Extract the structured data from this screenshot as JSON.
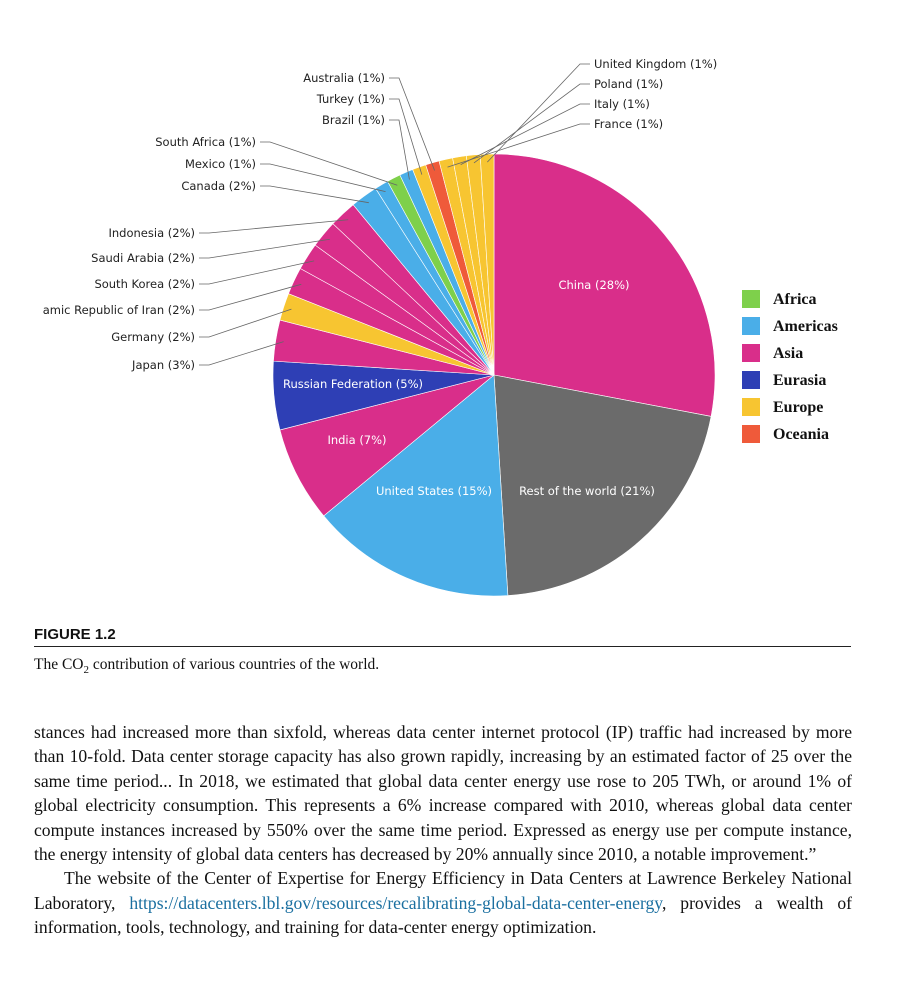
{
  "chart_data": {
    "type": "pie",
    "title": "",
    "slices": [
      {
        "label": "China (28%)",
        "value": 28,
        "region": "Asia",
        "label_inside": true
      },
      {
        "label": "Rest of the world (21%)",
        "value": 21,
        "region": "Rest",
        "label_inside": true
      },
      {
        "label": "United States (15%)",
        "value": 15,
        "region": "Americas",
        "label_inside": true
      },
      {
        "label": "India (7%)",
        "value": 7,
        "region": "Asia",
        "label_inside": true
      },
      {
        "label": "Russian Federation (5%)",
        "value": 5,
        "region": "Eurasia",
        "label_inside": true
      },
      {
        "label": "Japan (3%)",
        "value": 3,
        "region": "Asia",
        "label_inside": false
      },
      {
        "label": "Germany (2%)",
        "value": 2,
        "region": "Europe",
        "label_inside": false
      },
      {
        "label": "amic Republic of Iran (2%)",
        "value": 2,
        "region": "Asia",
        "label_inside": false
      },
      {
        "label": "South Korea (2%)",
        "value": 2,
        "region": "Asia",
        "label_inside": false
      },
      {
        "label": "Saudi Arabia (2%)",
        "value": 2,
        "region": "Asia",
        "label_inside": false
      },
      {
        "label": "Indonesia (2%)",
        "value": 2,
        "region": "Asia",
        "label_inside": false
      },
      {
        "label": "Canada (2%)",
        "value": 2,
        "region": "Americas",
        "label_inside": false
      },
      {
        "label": "Mexico (1%)",
        "value": 1,
        "region": "Americas",
        "label_inside": false
      },
      {
        "label": "South Africa (1%)",
        "value": 1,
        "region": "Africa",
        "label_inside": false
      },
      {
        "label": "Brazil (1%)",
        "value": 1,
        "region": "Americas",
        "label_inside": false
      },
      {
        "label": "Turkey (1%)",
        "value": 1,
        "region": "Europe",
        "label_inside": false
      },
      {
        "label": "Australia (1%)",
        "value": 1,
        "region": "Oceania",
        "label_inside": false
      },
      {
        "label": "France (1%)",
        "value": 1,
        "region": "Europe",
        "label_inside": false
      },
      {
        "label": "Italy (1%)",
        "value": 1,
        "region": "Europe",
        "label_inside": false
      },
      {
        "label": "Poland (1%)",
        "value": 1,
        "region": "Europe",
        "label_inside": false
      },
      {
        "label": "United Kingdom (1%)",
        "value": 1,
        "region": "Europe",
        "label_inside": false
      }
    ],
    "legend": [
      {
        "name": "Africa",
        "color": "#7ed04b"
      },
      {
        "name": "Americas",
        "color": "#4aaee8"
      },
      {
        "name": "Asia",
        "color": "#d92e8a"
      },
      {
        "name": "Eurasia",
        "color": "#2e3fb5"
      },
      {
        "name": "Europe",
        "color": "#f7c531"
      },
      {
        "name": "Oceania",
        "color": "#ef5a3a"
      }
    ],
    "legend_position": "right",
    "rest_color": "#6b6b6b"
  },
  "figure": {
    "heading": "FIGURE 1.2",
    "caption_before": "The CO",
    "caption_sub": "2",
    "caption_after": " contribution of various countries of the world."
  },
  "body": {
    "para1": "stances had increased more than sixfold, whereas data center internet protocol (IP) traffic had increased by more than 10-fold. Data center storage capacity has also grown rapidly, increasing by an estimated factor of 25 over the same time period... In 2018, we estimated that global data center energy use rose to 205 TWh, or around 1% of global electricity consumption. This represents a 6% increase compared with 2010, whereas global data center compute instances increased by 550% over the same time period. Expressed as energy use per compute instance, the energy intensity of global data centers has decreased by 20% annually since 2010, a notable improvement.”",
    "para2_before": "The website of the Center of Expertise for Energy Efficiency in Data Centers at Lawrence Berkeley National Laboratory, ",
    "para2_link": "https://datacenters.lbl.gov/resources/recalibrating-global-data-center-energy",
    "para2_after": ", provides a wealth of information, tools, technology, and training for data-center energy optimization."
  }
}
